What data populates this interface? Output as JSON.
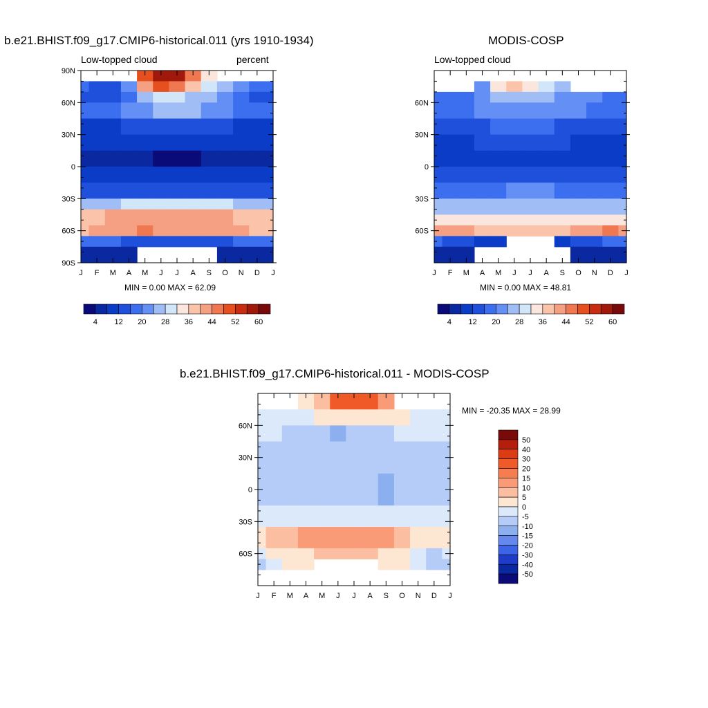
{
  "panels": [
    {
      "title": "b.e21.BHIST.f09_g17.CMIP6-historical.011 (yrs 1910-1934)",
      "left_label": "Low-topped cloud",
      "right_label": "percent",
      "stats": "MIN =   0.00 MAX =  62.09",
      "lat_labels": [
        "90N",
        "60N",
        "30N",
        "0",
        "30S",
        "60S",
        "90S"
      ],
      "month_labels": [
        "J",
        "F",
        "M",
        "A",
        "M",
        "J",
        "J",
        "A",
        "S",
        "O",
        "N",
        "D",
        "J"
      ]
    },
    {
      "title": "MODIS-COSP",
      "left_label": "Low-topped cloud",
      "right_label": "",
      "stats": "MIN =   0.00 MAX =  48.81",
      "lat_labels": [
        "60N",
        "30N",
        "0",
        "30S",
        "60S"
      ],
      "month_labels": [
        "J",
        "F",
        "M",
        "A",
        "M",
        "J",
        "J",
        "A",
        "S",
        "O",
        "N",
        "D",
        "J"
      ]
    },
    {
      "title": "b.e21.BHIST.f09_g17.CMIP6-historical.011 - MODIS-COSP",
      "left_label": "",
      "right_label": "",
      "stats": "MIN = -20.35 MAX =  28.99",
      "lat_labels": [
        "60N",
        "30N",
        "0",
        "30S",
        "60S"
      ],
      "month_labels": [
        "J",
        "F",
        "M",
        "A",
        "M",
        "J",
        "J",
        "A",
        "S",
        "O",
        "N",
        "D",
        "J"
      ]
    }
  ],
  "colorbar_abs": {
    "labels": [
      "4",
      "12",
      "20",
      "28",
      "36",
      "44",
      "52",
      "60"
    ],
    "colors": [
      "#0a0a78",
      "#0a28a0",
      "#0a3cc8",
      "#1e50dc",
      "#3c6ef0",
      "#6490f5",
      "#a0bef5",
      "#d2e6fa",
      "#fae6dc",
      "#fac3aa",
      "#f5a082",
      "#f07850",
      "#e6501e",
      "#c82d0f",
      "#a0190a",
      "#780a0a"
    ]
  },
  "colorbar_diff": {
    "labels": [
      "50",
      "40",
      "30",
      "20",
      "15",
      "10",
      "5",
      "0",
      "-5",
      "-10",
      "-15",
      "-20",
      "-30",
      "-40",
      "-50"
    ],
    "colors": [
      "#780a0a",
      "#b41e0a",
      "#dc3c14",
      "#f05a28",
      "#f57d50",
      "#fa9b78",
      "#fcbea0",
      "#fde6d2",
      "#dce9fa",
      "#b4ccf7",
      "#8caff0",
      "#6488ec",
      "#3c64e6",
      "#1e3cc8",
      "#0a28a0",
      "#0a0a78"
    ]
  },
  "chart_data": [
    {
      "type": "heatmap",
      "title": "b.e21.BHIST.f09_g17.CMIP6-historical.011 (yrs 1910-1934)",
      "subtitle_left": "Low-topped cloud",
      "subtitle_right": "percent",
      "x": [
        "J",
        "F",
        "M",
        "A",
        "M",
        "J",
        "J",
        "A",
        "S",
        "O",
        "N",
        "D",
        "J"
      ],
      "y_ticks": [
        "90N",
        "60N",
        "30N",
        "0",
        "30S",
        "60S",
        "90S"
      ],
      "ylim": [
        -90,
        90
      ],
      "min": 0.0,
      "max": 62.09,
      "contour_levels": [
        4,
        8,
        12,
        16,
        20,
        24,
        28,
        32,
        36,
        40,
        44,
        48,
        52,
        56,
        60
      ],
      "lat_bands": [
        {
          "lat": [
            80,
            90
          ],
          "values": [
            null,
            null,
            null,
            null,
            50,
            58,
            56,
            45,
            35,
            null,
            null,
            null,
            null
          ]
        },
        {
          "lat": [
            70,
            80
          ],
          "values": [
            16,
            14,
            12,
            20,
            40,
            48,
            45,
            36,
            30,
            24,
            20,
            18,
            16
          ]
        },
        {
          "lat": [
            60,
            70
          ],
          "values": [
            14,
            14,
            14,
            18,
            24,
            28,
            28,
            26,
            24,
            20,
            16,
            14,
            14
          ]
        },
        {
          "lat": [
            45,
            60
          ],
          "values": [
            16,
            16,
            16,
            20,
            22,
            26,
            26,
            24,
            22,
            20,
            18,
            16,
            16
          ]
        },
        {
          "lat": [
            30,
            45
          ],
          "values": [
            10,
            10,
            10,
            12,
            12,
            14,
            14,
            14,
            12,
            12,
            10,
            10,
            10
          ]
        },
        {
          "lat": [
            15,
            30
          ],
          "values": [
            8,
            8,
            8,
            8,
            10,
            10,
            8,
            8,
            8,
            8,
            8,
            8,
            8
          ]
        },
        {
          "lat": [
            0,
            15
          ],
          "values": [
            4,
            4,
            4,
            4,
            4,
            3,
            3,
            3,
            4,
            4,
            4,
            4,
            4
          ]
        },
        {
          "lat": [
            -15,
            0
          ],
          "values": [
            8,
            8,
            8,
            8,
            8,
            8,
            8,
            8,
            8,
            8,
            8,
            8,
            8
          ]
        },
        {
          "lat": [
            -30,
            -15
          ],
          "values": [
            12,
            12,
            12,
            12,
            14,
            14,
            14,
            14,
            12,
            12,
            12,
            12,
            12
          ]
        },
        {
          "lat": [
            -40,
            -30
          ],
          "values": [
            26,
            26,
            26,
            28,
            28,
            28,
            28,
            28,
            28,
            28,
            26,
            26,
            26
          ]
        },
        {
          "lat": [
            -55,
            -40
          ],
          "values": [
            36,
            38,
            40,
            40,
            40,
            40,
            40,
            40,
            40,
            40,
            38,
            36,
            36
          ]
        },
        {
          "lat": [
            -65,
            -55
          ],
          "values": [
            38,
            40,
            42,
            42,
            44,
            42,
            42,
            42,
            42,
            42,
            40,
            38,
            38
          ]
        },
        {
          "lat": [
            -75,
            -65
          ],
          "values": [
            16,
            16,
            16,
            14,
            12,
            12,
            12,
            12,
            12,
            14,
            16,
            16,
            16
          ]
        },
        {
          "lat": [
            -90,
            -75
          ],
          "values": [
            6,
            6,
            6,
            6,
            null,
            null,
            null,
            null,
            null,
            6,
            6,
            6,
            6
          ]
        }
      ]
    },
    {
      "type": "heatmap",
      "title": "MODIS-COSP",
      "subtitle_left": "Low-topped cloud",
      "x": [
        "J",
        "F",
        "M",
        "A",
        "M",
        "J",
        "J",
        "A",
        "S",
        "O",
        "N",
        "D",
        "J"
      ],
      "y_ticks": [
        "60N",
        "30N",
        "0",
        "30S",
        "60S"
      ],
      "ylim": [
        -90,
        90
      ],
      "min": 0.0,
      "max": 48.81,
      "contour_levels": [
        4,
        8,
        12,
        16,
        20,
        24,
        28,
        32,
        36,
        40,
        44,
        48,
        52,
        56,
        60
      ],
      "lat_bands": [
        {
          "lat": [
            70,
            80
          ],
          "values": [
            null,
            null,
            null,
            20,
            34,
            36,
            34,
            30,
            26,
            null,
            null,
            null,
            null
          ]
        },
        {
          "lat": [
            60,
            70
          ],
          "values": [
            16,
            16,
            18,
            20,
            24,
            26,
            26,
            24,
            22,
            20,
            20,
            18,
            16
          ]
        },
        {
          "lat": [
            45,
            60
          ],
          "values": [
            18,
            18,
            18,
            20,
            22,
            22,
            22,
            22,
            20,
            20,
            18,
            18,
            18
          ]
        },
        {
          "lat": [
            30,
            45
          ],
          "values": [
            14,
            14,
            14,
            14,
            16,
            16,
            16,
            16,
            14,
            14,
            14,
            14,
            14
          ]
        },
        {
          "lat": [
            15,
            30
          ],
          "values": [
            10,
            10,
            10,
            12,
            12,
            12,
            12,
            12,
            12,
            10,
            10,
            10,
            10
          ]
        },
        {
          "lat": [
            0,
            15
          ],
          "values": [
            10,
            10,
            10,
            10,
            10,
            10,
            10,
            10,
            10,
            10,
            10,
            10,
            10
          ]
        },
        {
          "lat": [
            -15,
            0
          ],
          "values": [
            12,
            12,
            12,
            14,
            14,
            14,
            14,
            14,
            14,
            12,
            12,
            12,
            12
          ]
        },
        {
          "lat": [
            -30,
            -15
          ],
          "values": [
            18,
            18,
            18,
            18,
            18,
            20,
            20,
            20,
            18,
            18,
            18,
            18,
            18
          ]
        },
        {
          "lat": [
            -45,
            -30
          ],
          "values": [
            24,
            24,
            24,
            24,
            26,
            26,
            26,
            26,
            24,
            24,
            24,
            24,
            24
          ]
        },
        {
          "lat": [
            -55,
            -45
          ],
          "values": [
            34,
            34,
            34,
            34,
            34,
            34,
            34,
            34,
            34,
            34,
            34,
            34,
            34
          ]
        },
        {
          "lat": [
            -65,
            -55
          ],
          "values": [
            40,
            42,
            40,
            38,
            36,
            36,
            36,
            36,
            38,
            40,
            42,
            44,
            42
          ]
        },
        {
          "lat": [
            -75,
            -65
          ],
          "values": [
            16,
            14,
            12,
            10,
            10,
            null,
            null,
            null,
            10,
            12,
            14,
            16,
            16
          ]
        },
        {
          "lat": [
            -90,
            -75
          ],
          "values": [
            6,
            6,
            6,
            null,
            null,
            null,
            null,
            null,
            null,
            6,
            6,
            6,
            6
          ]
        }
      ]
    },
    {
      "type": "heatmap",
      "title": "b.e21.BHIST.f09_g17.CMIP6-historical.011 - MODIS-COSP",
      "x": [
        "J",
        "F",
        "M",
        "A",
        "M",
        "J",
        "J",
        "A",
        "S",
        "O",
        "N",
        "D",
        "J"
      ],
      "y_ticks": [
        "60N",
        "30N",
        "0",
        "30S",
        "60S"
      ],
      "ylim": [
        -90,
        90
      ],
      "min": -20.35,
      "max": 28.99,
      "contour_levels": [
        -50,
        -40,
        -30,
        -20,
        -15,
        -10,
        -5,
        0,
        5,
        10,
        15,
        20,
        30,
        40,
        50
      ],
      "lat_bands": [
        {
          "lat": [
            75,
            90
          ],
          "values": [
            null,
            null,
            null,
            2,
            6,
            20,
            26,
            20,
            10,
            null,
            null,
            null,
            null
          ]
        },
        {
          "lat": [
            60,
            75
          ],
          "values": [
            -4,
            -4,
            -4,
            -2,
            0,
            2,
            2,
            2,
            2,
            0,
            -2,
            -4,
            -4
          ]
        },
        {
          "lat": [
            45,
            60
          ],
          "values": [
            -4,
            -4,
            -6,
            -8,
            -10,
            -12,
            -10,
            -8,
            -6,
            -4,
            -4,
            -4,
            -4
          ]
        },
        {
          "lat": [
            15,
            45
          ],
          "values": [
            -6,
            -6,
            -6,
            -6,
            -6,
            -6,
            -6,
            -6,
            -6,
            -6,
            -6,
            -6,
            -6
          ]
        },
        {
          "lat": [
            -15,
            15
          ],
          "values": [
            -6,
            -6,
            -6,
            -8,
            -8,
            -8,
            -8,
            -10,
            -12,
            -8,
            -6,
            -6,
            -6
          ]
        },
        {
          "lat": [
            -35,
            -15
          ],
          "values": [
            -4,
            -4,
            -4,
            -4,
            -4,
            -4,
            -4,
            -4,
            -4,
            -4,
            -4,
            -4,
            -4
          ]
        },
        {
          "lat": [
            -55,
            -35
          ],
          "values": [
            4,
            6,
            8,
            10,
            12,
            14,
            14,
            14,
            12,
            8,
            4,
            2,
            4
          ]
        },
        {
          "lat": [
            -65,
            -55
          ],
          "values": [
            -2,
            0,
            2,
            4,
            6,
            8,
            8,
            6,
            4,
            0,
            -4,
            -10,
            -2
          ]
        },
        {
          "lat": [
            -75,
            -65
          ],
          "values": [
            -8,
            -2,
            0,
            0,
            null,
            null,
            null,
            null,
            0,
            0,
            -4,
            -8,
            -8
          ]
        },
        {
          "lat": [
            -90,
            -75
          ],
          "values": [
            null,
            null,
            null,
            null,
            null,
            null,
            null,
            null,
            null,
            null,
            null,
            null,
            null
          ]
        }
      ]
    }
  ]
}
